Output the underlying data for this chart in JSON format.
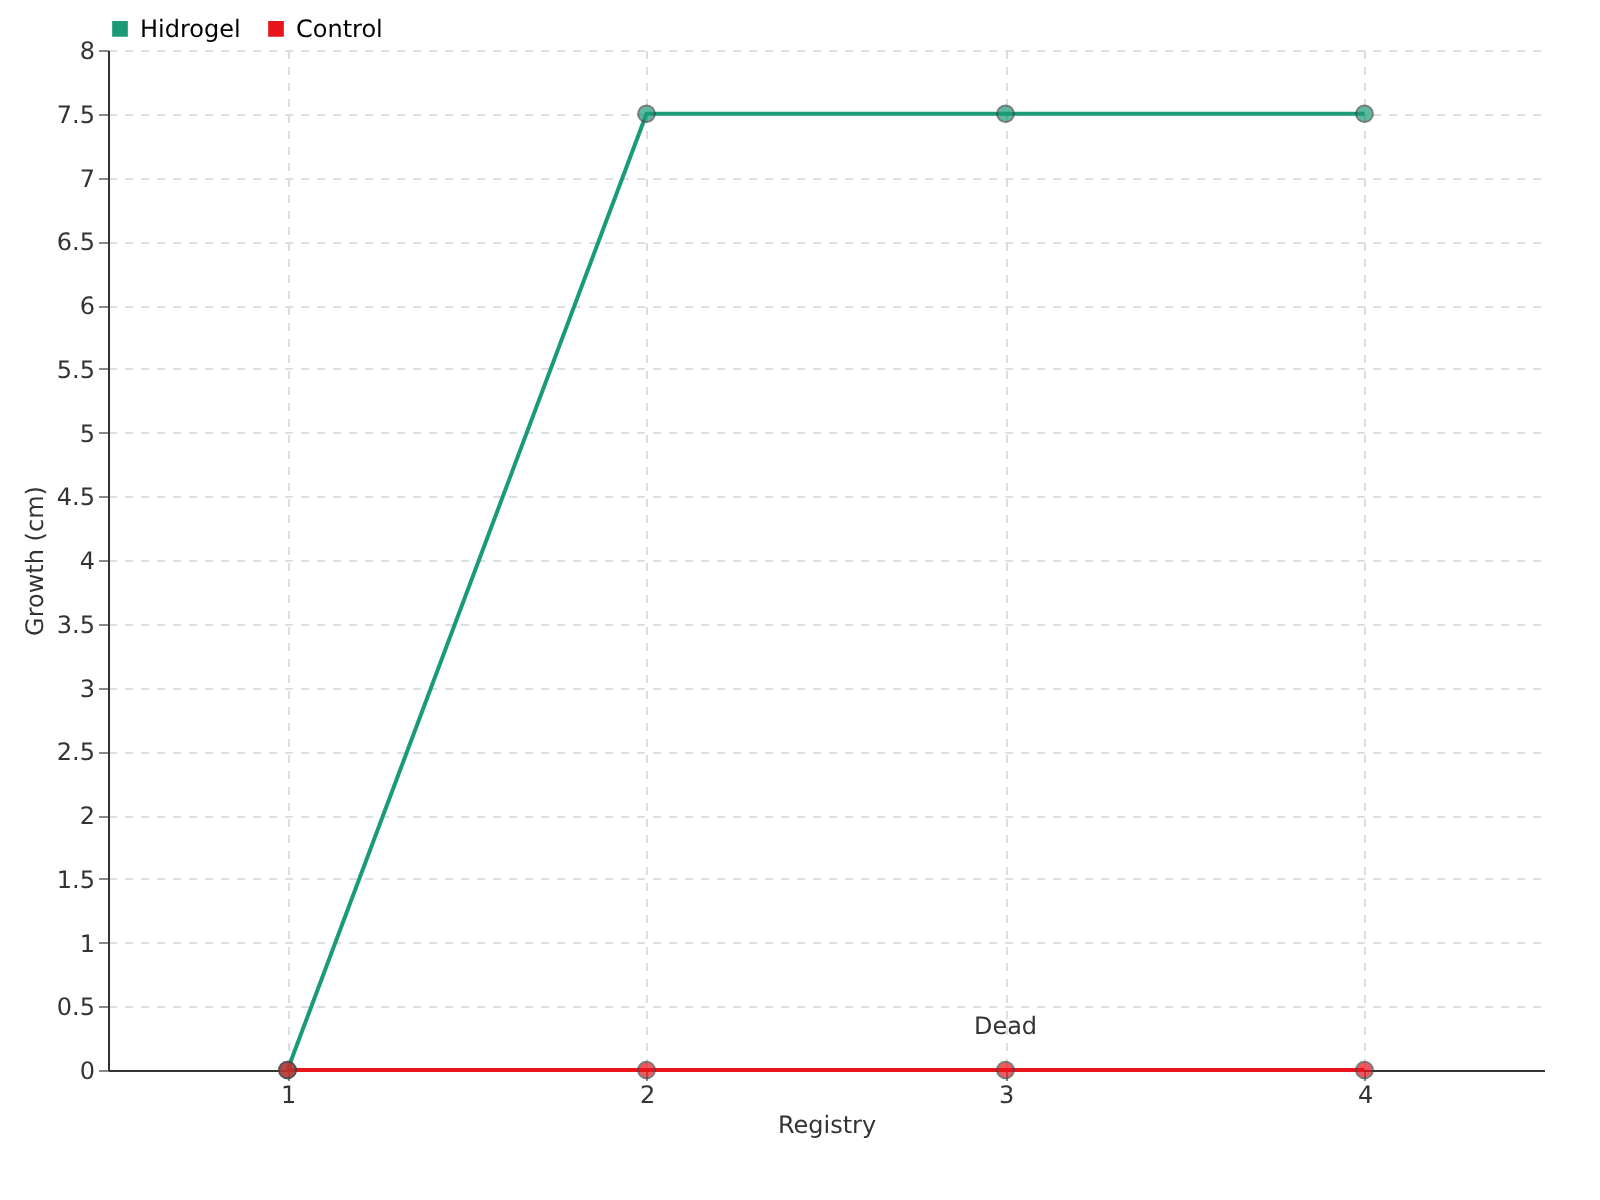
{
  "chart_data": {
    "type": "line",
    "xlabel": "Registry",
    "ylabel": "Growth (cm)",
    "categories": [
      "1",
      "2",
      "3",
      "4"
    ],
    "series": [
      {
        "name": "Hidrogel",
        "color": "#1b9a78",
        "values": [
          0,
          7.5,
          7.5,
          7.5
        ]
      },
      {
        "name": "Control",
        "color": "#e8141c",
        "values": [
          0,
          0,
          0,
          0
        ]
      }
    ],
    "ylim": [
      0,
      8
    ],
    "yticks": [
      0,
      0.5,
      1,
      1.5,
      2,
      2.5,
      3,
      3.5,
      4,
      4.5,
      5,
      5.5,
      6,
      6.5,
      7,
      7.5,
      8
    ],
    "grid": true,
    "legend": "top left",
    "marker": "circle",
    "line_style": "solid",
    "annotations": [
      {
        "text": "Dead",
        "x": "3",
        "y": 0
      }
    ]
  }
}
